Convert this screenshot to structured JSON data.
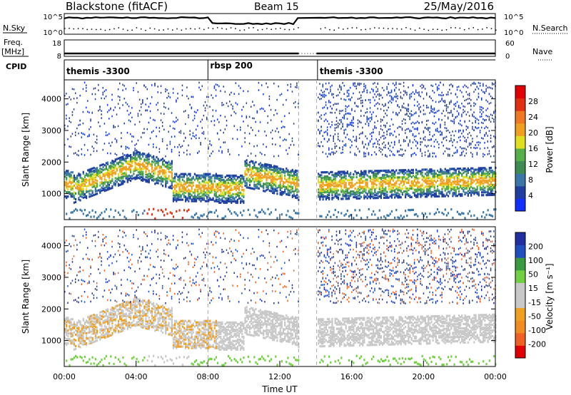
{
  "header": {
    "title": "Blackstone (fitACF)",
    "beam": "Beam 15",
    "date": "25/May/2016"
  },
  "summary_panels": {
    "nsky_label": "N.Sky",
    "nsearch_label": "N.Search",
    "log_ticks": [
      "10^5",
      "10^0"
    ],
    "freq_label_line1": "Freq.",
    "freq_label_line2": "[MHz]",
    "freq_ticks": [
      "18",
      "8"
    ],
    "nave_label": "Nave",
    "nave_ticks": [
      "60",
      "0"
    ],
    "cpid_label": "CPID",
    "cpid_segments": [
      {
        "name": "themis -3300",
        "start_hour": 0.0,
        "end_hour": 8.0
      },
      {
        "name": "rbsp 200",
        "start_hour": 8.0,
        "end_hour": 13.0
      },
      {
        "name": "themis -3300",
        "start_hour": 14.1,
        "end_hour": 24.0
      }
    ]
  },
  "colors": {
    "power": [
      "#1030ff",
      "#1e3fa0",
      "#3a76a8",
      "#3f8c52",
      "#56b04a",
      "#e0e020",
      "#f0a020",
      "#f07820",
      "#e03010",
      "#e00000"
    ],
    "velocity": [
      "#e00000",
      "#f06020",
      "#f08c20",
      "#f0a020",
      "#c8c8c8",
      "#c8c8c8",
      "#70d040",
      "#3a9a40",
      "#2050c0",
      "#2030a0"
    ]
  },
  "chart_data": [
    {
      "type": "heatmap",
      "xlabel": "Time UT",
      "ylabel": "Slant Range [km]",
      "x_ticks": [
        "00:00",
        "04:00",
        "08:00",
        "12:00",
        "16:00",
        "20:00",
        "00:00"
      ],
      "xlim_hours": [
        0,
        24
      ],
      "ylim_km": [
        180,
        4600
      ],
      "y_ticks": [
        1000,
        2000,
        3000,
        4000
      ],
      "colorbar_label": "Power [dB]",
      "colorbar_ticks": [
        28,
        24,
        20,
        16,
        12,
        8,
        4
      ],
      "colorbar_range": [
        0,
        30
      ],
      "data_gap_hours": [
        13.05,
        14.05
      ]
    },
    {
      "type": "heatmap",
      "xlabel": "Time UT",
      "ylabel": "Slant Range [km]",
      "x_ticks": [
        "00:00",
        "04:00",
        "08:00",
        "12:00",
        "16:00",
        "20:00",
        "00:00"
      ],
      "xlim_hours": [
        0,
        24
      ],
      "ylim_km": [
        180,
        4600
      ],
      "y_ticks": [
        1000,
        2000,
        3000,
        4000
      ],
      "colorbar_label": "Velocity [m s⁻¹]",
      "colorbar_ticks": [
        200,
        100,
        50,
        15,
        -15,
        -50,
        -100,
        -200
      ],
      "colorbar_range": [
        -250,
        250
      ],
      "data_gap_hours": [
        13.05,
        14.05
      ]
    }
  ]
}
